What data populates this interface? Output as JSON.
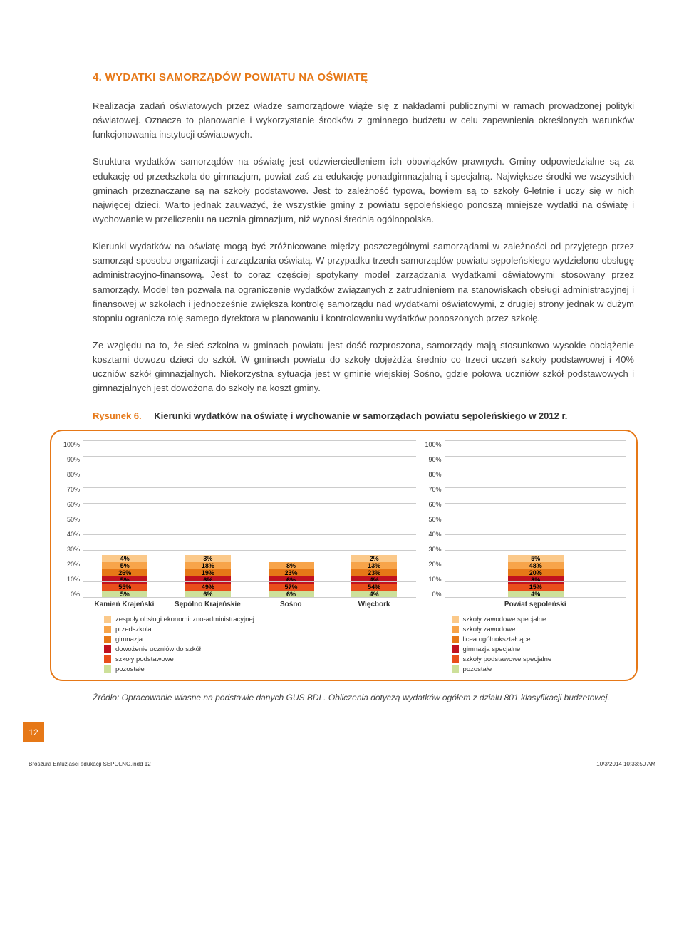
{
  "heading": "4. WYDATKI SAMORZĄDÓW POWIATU NA OŚWIATĘ",
  "paragraphs": {
    "p1": "Realizacja zadań oświatowych przez władze samorządowe wiąże się z nakładami publicznymi w ramach prowadzonej polityki oświatowej. Oznacza to planowanie i wykorzystanie środków z gminnego budżetu w celu zapewnienia określonych warunków funkcjonowania instytucji oświatowych.",
    "p2": "Struktura wydatków samorządów na oświatę jest odzwierciedleniem ich obowiązków prawnych. Gminy odpowiedzialne są za edukację od przedszkola do gimnazjum, powiat zaś za edukację ponadgimnazjalną i specjalną. Największe środki we wszystkich gminach przeznaczane są na szkoły podstawowe. Jest to zależność typowa, bowiem są to szkoły 6-letnie i uczy się w nich najwięcej dzieci. Warto jednak zauważyć, że wszystkie gminy z powiatu sępoleńskiego ponoszą mniejsze wydatki na oświatę i wychowanie w przeliczeniu na ucznia gimnazjum, niż wynosi średnia ogólnopolska.",
    "p3": "Kierunki wydatków na oświatę mogą być zróżnicowane między poszczególnymi samorządami w zależności od przyjętego przez samorząd sposobu organizacji i zarządzania oświatą. W przypadku trzech samorządów powiatu sępoleńskiego wydzielono obsługę administracyjno-finansową. Jest to coraz częściej spotykany model zarządzania wydatkami oświatowymi stosowany przez samorządy. Model ten pozwala na ograniczenie wydatków związanych z zatrudnieniem na stanowiskach obsługi administracyjnej i finansowej w szkołach i jednocześnie zwiększa kontrolę samorządu nad wydatkami oświatowymi, z drugiej strony jednak w dużym stopniu ogranicza rolę samego dyrektora w planowaniu i kontrolowaniu wydatków ponoszonych przez szkołę.",
    "p4": "Ze względu na to, że sieć szkolna w gminach powiatu jest dość rozproszona, samorządy mają stosunkowo wysokie obciążenie kosztami dowozu dzieci do szkół. W gminach powiatu do szkoły dojeżdża średnio co trzeci uczeń szkoły podstawowej i 40% uczniów szkół gimnazjalnych. Niekorzystna sytuacja jest w gminie wiejskiej Sośno, gdzie połowa uczniów szkół podstawowych i gimnazjalnych jest dowożona do szkoły na koszt gminy."
  },
  "figure": {
    "label": "Rysunek 6.",
    "title": "Kierunki wydatków na oświatę i wychowanie w samorządach powiatu sępoleńskiego w 2012 r."
  },
  "chart_left": {
    "ylim_top": 100,
    "ticks": [
      "100%",
      "90%",
      "80%",
      "70%",
      "60%",
      "50%",
      "40%",
      "30%",
      "20%",
      "10%",
      "0%"
    ],
    "categories": [
      "Kamień Krajeński",
      "Sępólno Krajeńskie",
      "Sośno",
      "Więcbork"
    ],
    "colors": {
      "pozostale": "#cde09a",
      "szkoly_podstawowe": "#e94e1b",
      "dowozenie": "#c1121f",
      "gimnazja": "#e67817",
      "przedszkola": "#f7a44a",
      "zespoly": "#fbc98a"
    },
    "series": [
      {
        "cat": "Kamień Krajeński",
        "segments": [
          {
            "key": "pozostale",
            "value": 5,
            "label": "5%"
          },
          {
            "key": "szkoly_podstawowe",
            "value": 55,
            "label": "55%"
          },
          {
            "key": "dowozenie",
            "value": 5,
            "label": "5%"
          },
          {
            "key": "gimnazja",
            "value": 26,
            "label": "26%"
          },
          {
            "key": "przedszkola",
            "value": 5,
            "label": "5%"
          },
          {
            "key": "zespoly",
            "value": 4,
            "label": "4%"
          }
        ]
      },
      {
        "cat": "Sępólno Krajeńskie",
        "segments": [
          {
            "key": "pozostale",
            "value": 6,
            "label": "6%"
          },
          {
            "key": "szkoly_podstawowe",
            "value": 49,
            "label": "49%"
          },
          {
            "key": "dowozenie",
            "value": 6,
            "label": "6%"
          },
          {
            "key": "gimnazja",
            "value": 19,
            "label": "19%"
          },
          {
            "key": "przedszkola",
            "value": 18,
            "label": "18%"
          },
          {
            "key": "zespoly",
            "value": 3,
            "label": "3%"
          }
        ]
      },
      {
        "cat": "Sośno",
        "segments": [
          {
            "key": "pozostale",
            "value": 6,
            "label": "6%"
          },
          {
            "key": "szkoly_podstawowe",
            "value": 57,
            "label": "57%"
          },
          {
            "key": "dowozenie",
            "value": 6,
            "label": "6%"
          },
          {
            "key": "gimnazja",
            "value": 23,
            "label": "23%"
          },
          {
            "key": "przedszkola",
            "value": 8,
            "label": "8%"
          }
        ]
      },
      {
        "cat": "Więcbork",
        "segments": [
          {
            "key": "pozostale",
            "value": 4,
            "label": "4%"
          },
          {
            "key": "szkoly_podstawowe",
            "value": 54,
            "label": "54%"
          },
          {
            "key": "dowozenie",
            "value": 4,
            "label": "4%"
          },
          {
            "key": "gimnazja",
            "value": 23,
            "label": "23%"
          },
          {
            "key": "przedszkola",
            "value": 13,
            "label": "13%"
          },
          {
            "key": "zespoly",
            "value": 2,
            "label": "2%"
          }
        ]
      }
    ],
    "legend": [
      {
        "color": "#fbc98a",
        "label": "zespoły obsługi ekonomiczno-administracyjnej"
      },
      {
        "color": "#f7a44a",
        "label": "przedszkola"
      },
      {
        "color": "#e67817",
        "label": "gimnazja"
      },
      {
        "color": "#c1121f",
        "label": "dowożenie uczniów do szkół"
      },
      {
        "color": "#e94e1b",
        "label": "szkoły podstawowe"
      },
      {
        "color": "#cde09a",
        "label": "pozostałe"
      }
    ]
  },
  "chart_right": {
    "ticks": [
      "100%",
      "90%",
      "80%",
      "70%",
      "60%",
      "50%",
      "40%",
      "30%",
      "20%",
      "10%",
      "0%"
    ],
    "categories": [
      "Powiat sępoleński"
    ],
    "colors": {
      "pozostale": "#cde09a",
      "szkoly_podst_spec": "#e94e1b",
      "gimnazja_spec": "#c1121f",
      "licea": "#e67817",
      "szkoly_zawodowe": "#f7a44a",
      "szkoly_zaw_spec": "#fbc98a"
    },
    "series": [
      {
        "cat": "Powiat sępoleński",
        "segments": [
          {
            "key": "pozostale",
            "value": 4,
            "label": "4%"
          },
          {
            "key": "szkoly_podst_spec",
            "value": 15,
            "label": "15%"
          },
          {
            "key": "gimnazja_spec",
            "value": 8,
            "label": "8%"
          },
          {
            "key": "licea",
            "value": 20,
            "label": "20%"
          },
          {
            "key": "szkoly_zawodowe",
            "value": 48,
            "label": "48%"
          },
          {
            "key": "szkoly_zaw_spec",
            "value": 5,
            "label": "5%"
          }
        ]
      }
    ],
    "legend": [
      {
        "color": "#fbc98a",
        "label": "szkoły zawodowe specjalne"
      },
      {
        "color": "#f7a44a",
        "label": "szkoły zawodowe"
      },
      {
        "color": "#e67817",
        "label": "licea ogólnokształcące"
      },
      {
        "color": "#c1121f",
        "label": "gimnazja specjalne"
      },
      {
        "color": "#e94e1b",
        "label": "szkoły podstawowe specjalne"
      },
      {
        "color": "#cde09a",
        "label": "pozostałe"
      }
    ]
  },
  "source": "Źródło: Opracowanie własne na podstawie danych GUS BDL. Obliczenia dotyczą wydatków ogółem z działu 801 klasyfikacji budżetowej.",
  "page_number": "12",
  "footer": {
    "left": "Broszura Entuzjasci edukacji SEPOLNO.indd   12",
    "right": "10/3/2014   10:33:50 AM"
  },
  "grid_color": "#cccccc",
  "card_border": "#e67817"
}
